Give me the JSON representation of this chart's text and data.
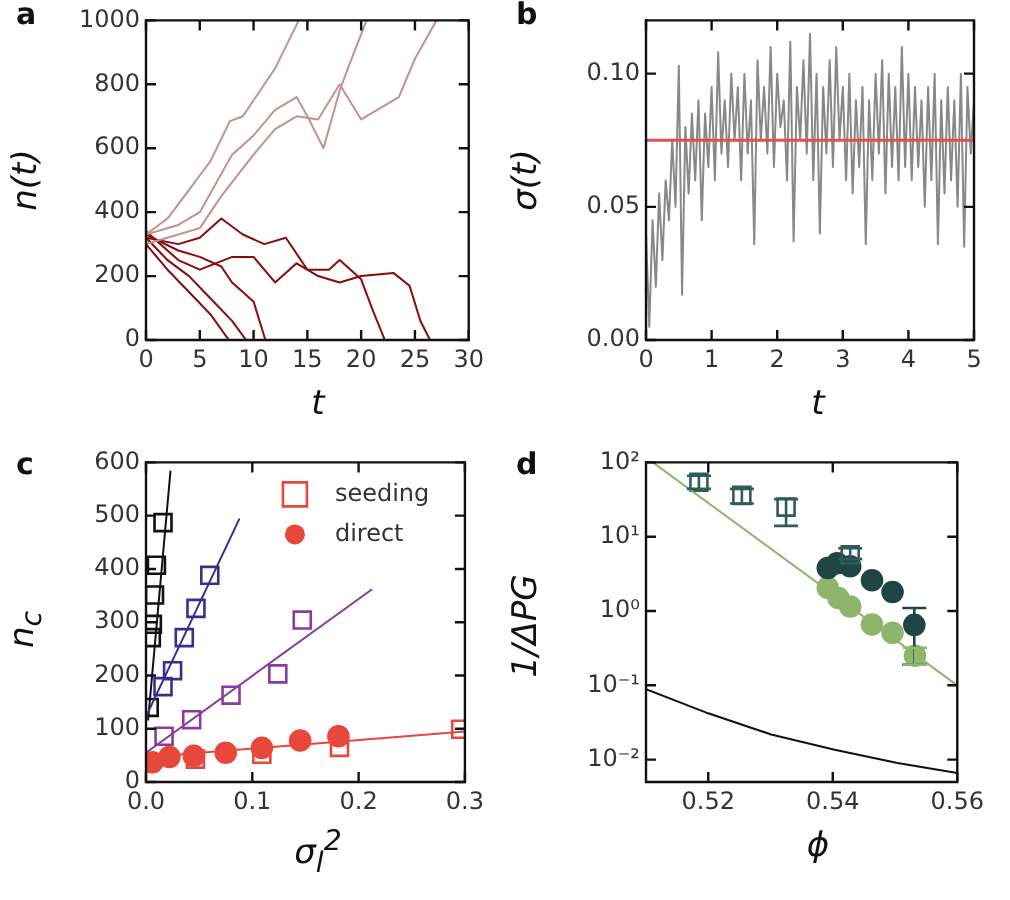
{
  "chart_data": [
    {
      "type": "line",
      "title": "a",
      "xlabel": "t",
      "ylabel": "n(t)",
      "xlim": [
        0,
        30
      ],
      "ylim": [
        0,
        1000
      ],
      "xticks": [
        0,
        5,
        10,
        15,
        20,
        25,
        30
      ],
      "yticks": [
        0,
        200,
        400,
        600,
        800,
        1000
      ],
      "marker": "none",
      "series": [
        {
          "color": "#c49090",
          "x": [
            0,
            2,
            4,
            6,
            7.8,
            9,
            10.8,
            12,
            14.2
          ],
          "values": [
            330,
            380,
            470,
            560,
            685,
            700,
            790,
            850,
            1000
          ]
        },
        {
          "color": "#c49090",
          "x": [
            0,
            3,
            5,
            8,
            10,
            12,
            14,
            15,
            16.5,
            18,
            19,
            20.5
          ],
          "values": [
            330,
            360,
            400,
            580,
            640,
            720,
            760,
            700,
            600,
            780,
            870,
            1000
          ]
        },
        {
          "color": "#c49090",
          "x": [
            0,
            3,
            5,
            7,
            10,
            12,
            14,
            16,
            18,
            20,
            21.5,
            23.5,
            25,
            27
          ],
          "values": [
            300,
            330,
            350,
            450,
            580,
            660,
            700,
            690,
            800,
            690,
            720,
            760,
            880,
            1000
          ]
        },
        {
          "color": "#8b0a0a",
          "x": [
            0,
            2,
            4,
            6,
            7.7
          ],
          "values": [
            300,
            220,
            150,
            80,
            0
          ]
        },
        {
          "color": "#8b0a0a",
          "x": [
            0,
            2,
            4,
            6,
            8,
            9.3
          ],
          "values": [
            320,
            250,
            200,
            130,
            60,
            0
          ]
        },
        {
          "color": "#8b0a0a",
          "x": [
            0,
            3,
            5,
            7,
            8,
            9,
            10,
            11.1
          ],
          "values": [
            330,
            280,
            260,
            230,
            180,
            150,
            120,
            0
          ]
        },
        {
          "color": "#8b0a0a",
          "x": [
            0,
            3,
            5,
            7,
            9,
            11,
            13,
            15,
            17,
            18,
            20,
            21,
            22.2
          ],
          "values": [
            320,
            300,
            320,
            380,
            330,
            300,
            320,
            220,
            220,
            250,
            190,
            100,
            0
          ]
        },
        {
          "color": "#8b0a0a",
          "x": [
            0,
            3,
            5,
            8,
            10,
            12,
            14,
            16,
            18,
            20,
            23,
            24.5,
            25.5,
            26.4
          ],
          "values": [
            340,
            250,
            220,
            260,
            260,
            180,
            240,
            200,
            180,
            200,
            210,
            170,
            60,
            0
          ]
        }
      ]
    },
    {
      "type": "line",
      "title": "b",
      "xlabel": "t",
      "ylabel": "σ(t)",
      "xlim": [
        0,
        5
      ],
      "ylim": [
        0,
        0.12
      ],
      "xticks": [
        0,
        1,
        2,
        3,
        4,
        5
      ],
      "yticks": [
        {
          "value": 0,
          "label": "0.00"
        },
        {
          "value": 0.05,
          "label": "0.05"
        },
        {
          "value": 0.1,
          "label": "0.10"
        }
      ],
      "marker": "none",
      "ref_lines": [
        {
          "axis": "y",
          "value": 0.075,
          "color": "#e05050"
        }
      ],
      "series": [
        {
          "color": "#888888",
          "x": [
            0,
            0.05,
            0.1,
            0.15,
            0.2,
            0.25,
            0.3,
            0.35,
            0.4,
            0.45,
            0.5,
            0.55,
            0.6,
            0.65,
            0.7,
            0.75,
            0.8,
            0.85,
            0.9,
            0.95,
            1,
            1.05,
            1.1,
            1.15,
            1.2,
            1.25,
            1.3,
            1.35,
            1.4,
            1.45,
            1.5,
            1.55,
            1.6,
            1.65,
            1.7,
            1.75,
            1.8,
            1.85,
            1.9,
            1.95,
            2,
            2.05,
            2.1,
            2.15,
            2.2,
            2.25,
            2.3,
            2.35,
            2.4,
            2.45,
            2.5,
            2.55,
            2.6,
            2.65,
            2.7,
            2.75,
            2.8,
            2.85,
            2.9,
            2.95,
            3,
            3.05,
            3.1,
            3.15,
            3.2,
            3.25,
            3.3,
            3.35,
            3.4,
            3.45,
            3.5,
            3.55,
            3.6,
            3.65,
            3.7,
            3.75,
            3.8,
            3.85,
            3.9,
            3.95,
            4,
            4.05,
            4.1,
            4.15,
            4.2,
            4.25,
            4.3,
            4.35,
            4.4,
            4.45,
            4.5,
            4.55,
            4.6,
            4.65,
            4.7,
            4.75,
            4.8,
            4.85,
            4.9,
            4.95,
            5
          ],
          "values": [
            0.04,
            0.005,
            0.045,
            0.02,
            0.055,
            0.03,
            0.06,
            0.045,
            0.075,
            0.05,
            0.103,
            0.017,
            0.08,
            0.055,
            0.085,
            0.06,
            0.09,
            0.045,
            0.085,
            0.065,
            0.095,
            0.06,
            0.108,
            0.07,
            0.09,
            0.065,
            0.1,
            0.075,
            0.095,
            0.06,
            0.1,
            0.07,
            0.09,
            0.036,
            0.105,
            0.075,
            0.095,
            0.07,
            0.11,
            0.065,
            0.1,
            0.08,
            0.09,
            0.06,
            0.112,
            0.037,
            0.095,
            0.075,
            0.105,
            0.07,
            0.115,
            0.06,
            0.1,
            0.04,
            0.095,
            0.07,
            0.105,
            0.065,
            0.11,
            0.075,
            0.095,
            0.06,
            0.1,
            0.055,
            0.09,
            0.065,
            0.095,
            0.036,
            0.09,
            0.06,
            0.1,
            0.07,
            0.105,
            0.055,
            0.1,
            0.065,
            0.095,
            0.06,
            0.11,
            0.065,
            0.1,
            0.06,
            0.095,
            0.065,
            0.09,
            0.05,
            0.095,
            0.06,
            0.1,
            0.036,
            0.09,
            0.055,
            0.095,
            0.06,
            0.09,
            0.05,
            0.1,
            0.035,
            0.095,
            0.07,
            0.09
          ]
        }
      ]
    },
    {
      "type": "scatter",
      "title": "c",
      "xlabel": "σ$_{l}$$^{2}$",
      "ylabel": "n$_{c}$",
      "xlim": [
        0,
        0.3
      ],
      "ylim": [
        0,
        600
      ],
      "xticks": [
        {
          "value": 0,
          "label": "0.0"
        },
        {
          "value": 0.1,
          "label": "0.1"
        },
        {
          "value": 0.2,
          "label": "0.2"
        },
        {
          "value": 0.3,
          "label": "0.3"
        }
      ],
      "yticks": [
        0,
        100,
        200,
        300,
        400,
        500,
        600
      ],
      "legend": "top right",
      "series": [
        {
          "name": "seeding",
          "marker": "square",
          "color": "#e8473c",
          "x": [
            0.0465,
            0.109,
            0.182,
            0.296
          ],
          "values": [
            43,
            52,
            65,
            99
          ]
        },
        {
          "name": "direct",
          "marker": "circle",
          "color": "#e8473c",
          "x": [
            0.006,
            0.022,
            0.045,
            0.075,
            0.109,
            0.145,
            0.181
          ],
          "values": [
            37,
            47,
            49,
            55,
            64,
            78,
            86
          ]
        },
        {
          "type": "line",
          "marker": "none",
          "color": "#e8473c",
          "x": [
            0.002,
            0.3
          ],
          "values": [
            47,
            95
          ]
        },
        {
          "marker": "square",
          "color": "#8a3aa0",
          "x": [
            0.017,
            0.043,
            0.08,
            0.124,
            0.147
          ],
          "values": [
            86,
            117,
            163,
            203,
            304
          ]
        },
        {
          "type": "line",
          "marker": "none",
          "color": "#8a3aa0",
          "x": [
            0,
            0.212
          ],
          "values": [
            55,
            361
          ]
        },
        {
          "marker": "square",
          "color": "#3b2d8f",
          "x": [
            0.016,
            0.025,
            0.036,
            0.047,
            0.06
          ],
          "values": [
            179,
            209,
            271,
            326,
            388
          ]
        },
        {
          "type": "line",
          "marker": "none",
          "color": "#3b2d8f",
          "x": [
            0,
            0.0876
          ],
          "values": [
            123,
            493
          ]
        },
        {
          "marker": "square",
          "color": "#111111",
          "x": [
            0.003,
            0.005,
            0.006,
            0.008,
            0.0098,
            0.016
          ],
          "values": [
            140,
            271,
            296,
            351,
            407,
            487
          ]
        },
        {
          "type": "line",
          "marker": "none",
          "color": "#111111",
          "x": [
            0.002,
            0.023
          ],
          "values": [
            117,
            583
          ]
        }
      ]
    },
    {
      "type": "scatter",
      "title": "d",
      "xlabel": "ϕ",
      "ylabel": "1/ΔPG",
      "log": true,
      "xlim": [
        0.51,
        0.56
      ],
      "ylim": [
        0.005,
        100
      ],
      "xticks": [
        0.52,
        0.54,
        0.56
      ],
      "yticks": [
        {
          "value": 0.01,
          "label": "10⁻²"
        },
        {
          "value": 0.1,
          "label": "10⁻¹"
        },
        {
          "value": 1,
          "label": "10⁰"
        },
        {
          "value": 10,
          "label": "10¹"
        },
        {
          "value": 100,
          "label": "10²"
        }
      ],
      "series": [
        {
          "type": "line",
          "marker": "none",
          "color": "#8db56b",
          "x": [
            0.5111,
            0.56
          ],
          "values": [
            100,
            0.1
          ]
        },
        {
          "type": "line",
          "marker": "none",
          "color": "#111111",
          "x": [
            0.51,
            0.52,
            0.5301,
            0.5403,
            0.5504,
            0.56
          ],
          "values": [
            0.089,
            0.042,
            0.0218,
            0.0136,
            0.009,
            0.0066
          ]
        },
        {
          "marker": "square",
          "color": "#2e5c5c",
          "x": [
            0.5185,
            0.5254,
            0.5325,
            0.5428
          ],
          "values": [
            54,
            36,
            25,
            5.7
          ],
          "errors": [
            [
              44,
              66
            ],
            [
              28,
              44
            ],
            [
              14,
              32
            ],
            [
              5,
              7
            ]
          ]
        },
        {
          "marker": "circle",
          "color": "#1f4545",
          "x": [
            0.5392,
            0.5407,
            0.5428,
            0.5463,
            0.5496,
            0.5531
          ],
          "values": [
            3.8,
            4.4,
            4,
            2.6,
            1.8,
            0.65
          ],
          "errors": [
            null,
            null,
            null,
            null,
            null,
            [
              0.19,
              1.1
            ]
          ]
        },
        {
          "marker": "circle",
          "color": "#8db56b",
          "x": [
            0.5392,
            0.5409,
            0.5428,
            0.5463,
            0.5496,
            0.5532
          ],
          "values": [
            2.05,
            1.5,
            1.15,
            0.66,
            0.51,
            0.25
          ],
          "errors": [
            null,
            null,
            null,
            null,
            null,
            [
              0.19,
              0.32
            ]
          ]
        }
      ]
    }
  ]
}
